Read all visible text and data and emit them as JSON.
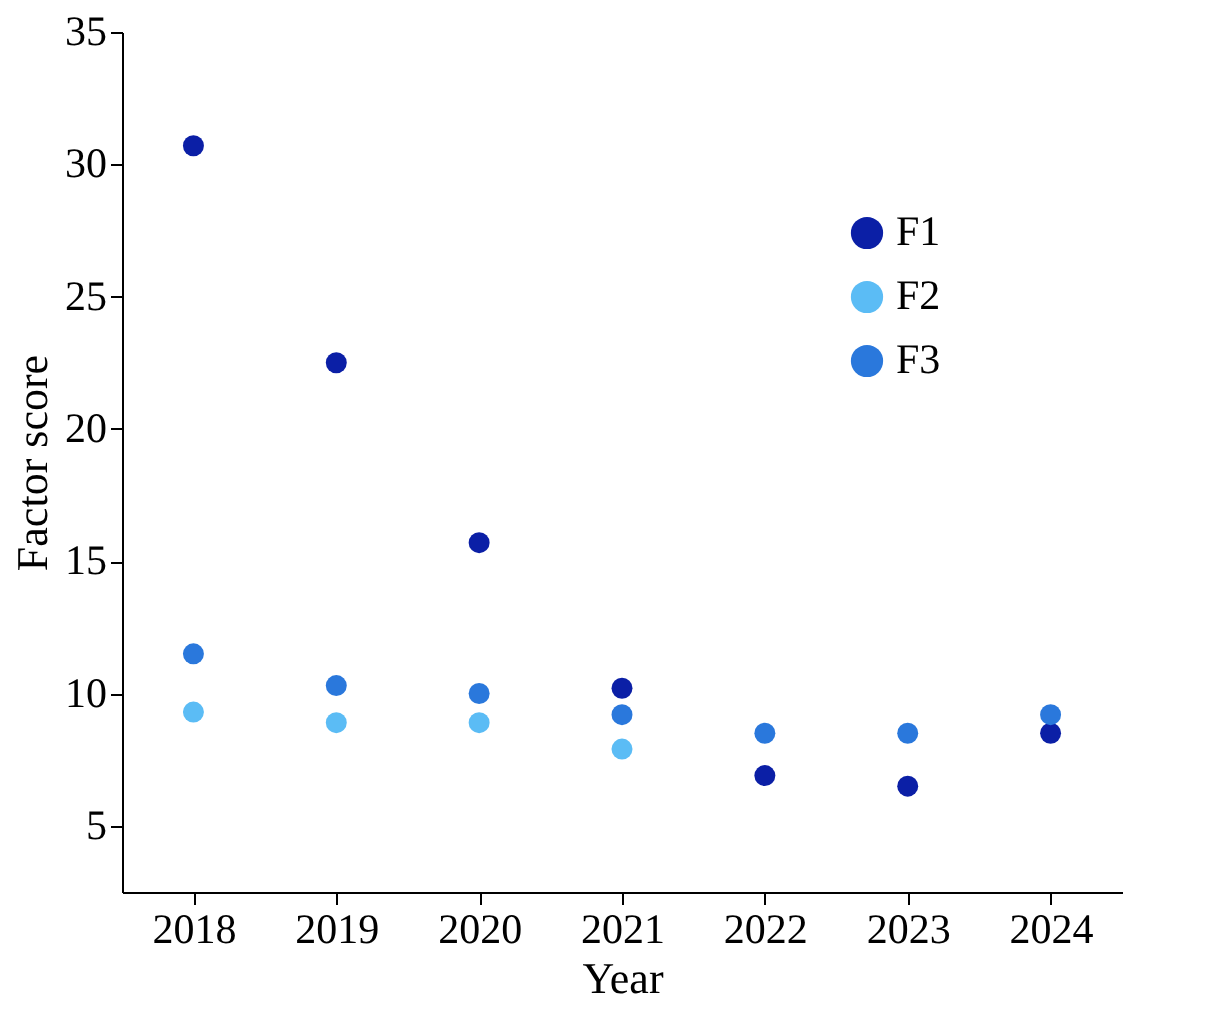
{
  "chart_data": {
    "type": "scatter",
    "xlabel": "Year",
    "ylabel": "Factor score",
    "categories": [
      "2018",
      "2019",
      "2020",
      "2021",
      "2022",
      "2023",
      "2024"
    ],
    "series": [
      {
        "name": "F1",
        "color": "#0b1fa6",
        "values": [
          30.7,
          22.5,
          15.7,
          10.2,
          6.9,
          6.5,
          8.5
        ]
      },
      {
        "name": "F2",
        "color": "#5bbcf5",
        "values": [
          9.3,
          8.9,
          8.9,
          7.9,
          null,
          null,
          null
        ]
      },
      {
        "name": "F3",
        "color": "#2a78dc",
        "values": [
          11.5,
          10.3,
          10.0,
          9.2,
          8.5,
          8.5,
          9.2
        ]
      }
    ],
    "ylim": [
      2.5,
      35
    ],
    "yticks": [
      5,
      10,
      15,
      20,
      25,
      30,
      35
    ],
    "grid": false,
    "legend": "top right",
    "marker": "circle"
  }
}
